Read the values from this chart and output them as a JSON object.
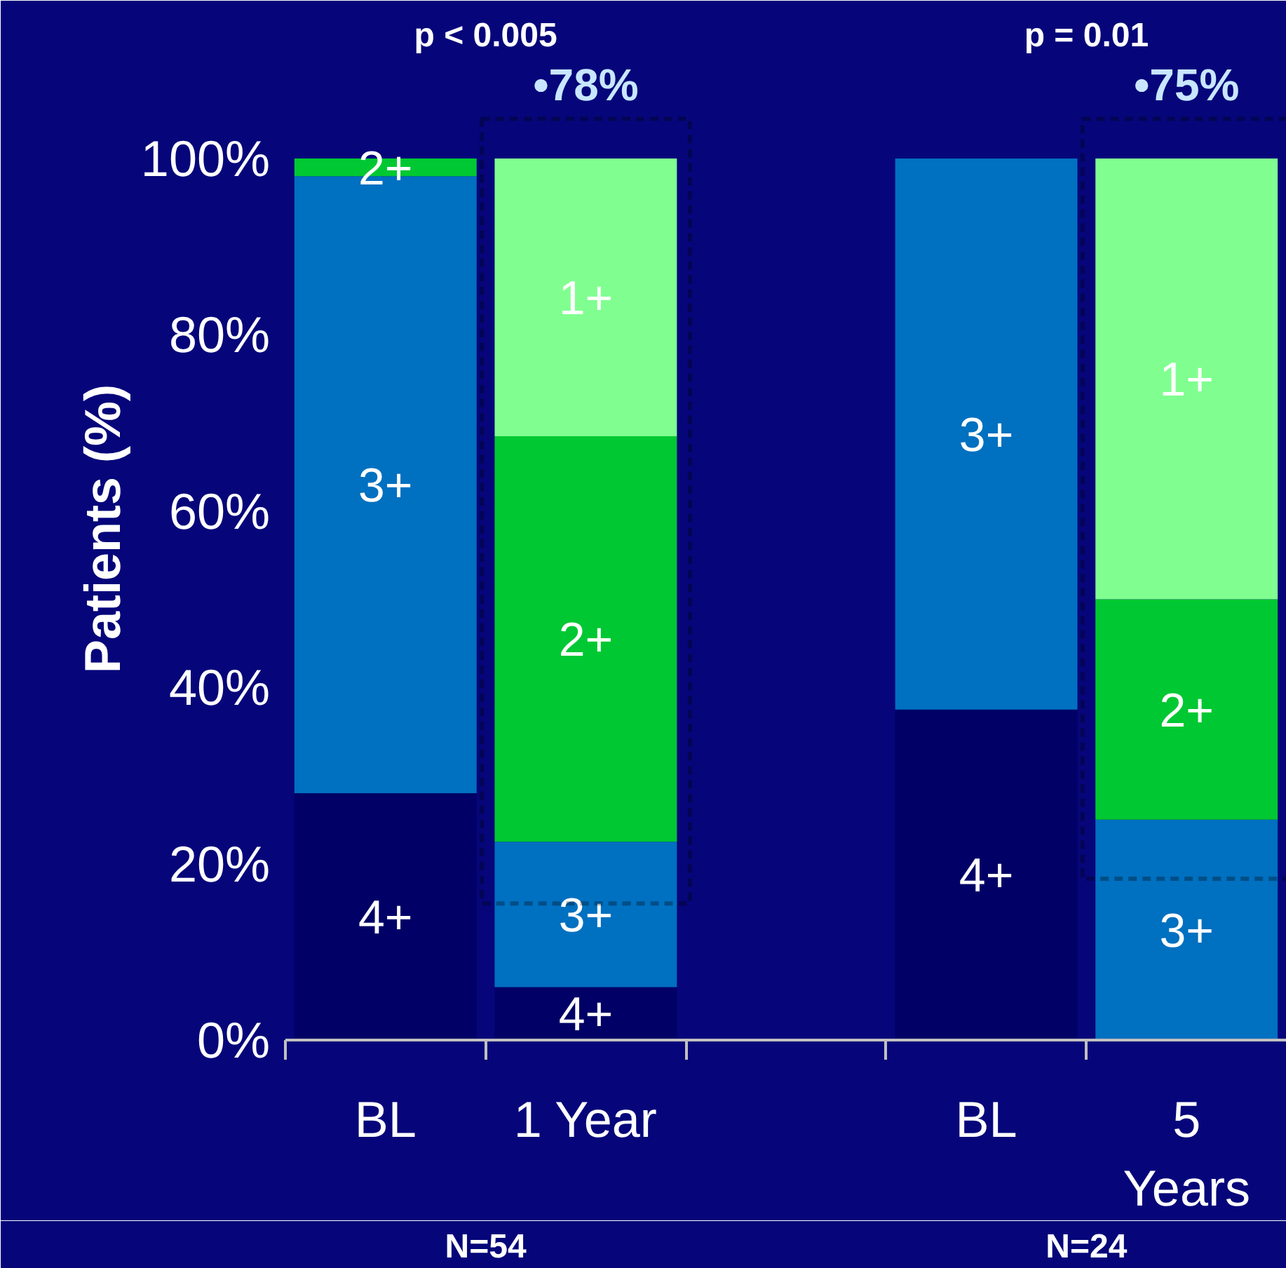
{
  "chart_data": {
    "type": "bar",
    "stacked": true,
    "ylabel": "Patients (%)",
    "categories": [
      "BL",
      "1 Year",
      null,
      "BL",
      "5 Years"
    ],
    "series": [
      {
        "name": "4+",
        "color": "#000066",
        "values": [
          28,
          6,
          null,
          37.5,
          0
        ]
      },
      {
        "name": "3+",
        "color": "#0070c0",
        "values": [
          70,
          16.5,
          null,
          62.5,
          25
        ]
      },
      {
        "name": "2+",
        "color": "#00c832",
        "values": [
          2,
          46,
          null,
          0,
          25
        ]
      },
      {
        "name": "1+",
        "color": "#80ff90",
        "values": [
          0,
          31.5,
          null,
          0,
          50
        ]
      }
    ],
    "ylim": [
      0,
      116
    ],
    "yticks": [
      {
        "value": 0,
        "label": "0%"
      },
      {
        "value": 20,
        "label": "20%"
      },
      {
        "value": 40,
        "label": "40%"
      },
      {
        "value": 60,
        "label": "60%"
      },
      {
        "value": 80,
        "label": "80%"
      },
      {
        "value": 100,
        "label": "100%"
      }
    ],
    "grid": false,
    "annotations": [
      "p < 0.005",
      "p = 0.01",
      "•78%",
      "•75%",
      "N=54",
      "N=24"
    ]
  }
}
